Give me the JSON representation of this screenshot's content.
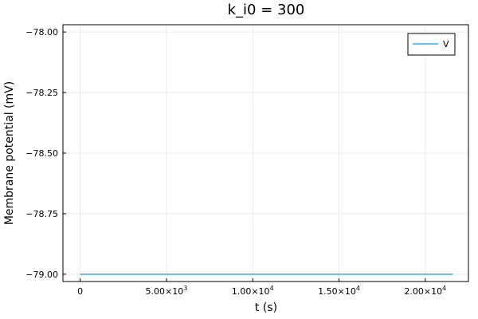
{
  "chart_data": {
    "type": "line",
    "title": "k_i0 = 300",
    "xlabel": "t (s)",
    "ylabel": "Membrane potential (mV)",
    "xlim": [
      -1000,
      22500
    ],
    "ylim": [
      -79.03,
      -77.97
    ],
    "grid": true,
    "legend_position": "top-right",
    "x_ticks": [
      {
        "value": 0,
        "mantissa": "0",
        "exp": ""
      },
      {
        "value": 5000,
        "mantissa": "5.00×10",
        "exp": "3"
      },
      {
        "value": 10000,
        "mantissa": "1.00×10",
        "exp": "4"
      },
      {
        "value": 15000,
        "mantissa": "1.50×10",
        "exp": "4"
      },
      {
        "value": 20000,
        "mantissa": "2.00×10",
        "exp": "4"
      }
    ],
    "y_ticks": [
      {
        "value": -78.0,
        "label": "−78.00"
      },
      {
        "value": -78.25,
        "label": "−78.25"
      },
      {
        "value": -78.5,
        "label": "−78.50"
      },
      {
        "value": -78.75,
        "label": "−78.75"
      },
      {
        "value": -79.0,
        "label": "−79.00"
      }
    ],
    "series": [
      {
        "name": "V",
        "color": "#009af9",
        "x": [
          0,
          21600
        ],
        "y": [
          -79.0,
          -79.0
        ]
      }
    ]
  }
}
